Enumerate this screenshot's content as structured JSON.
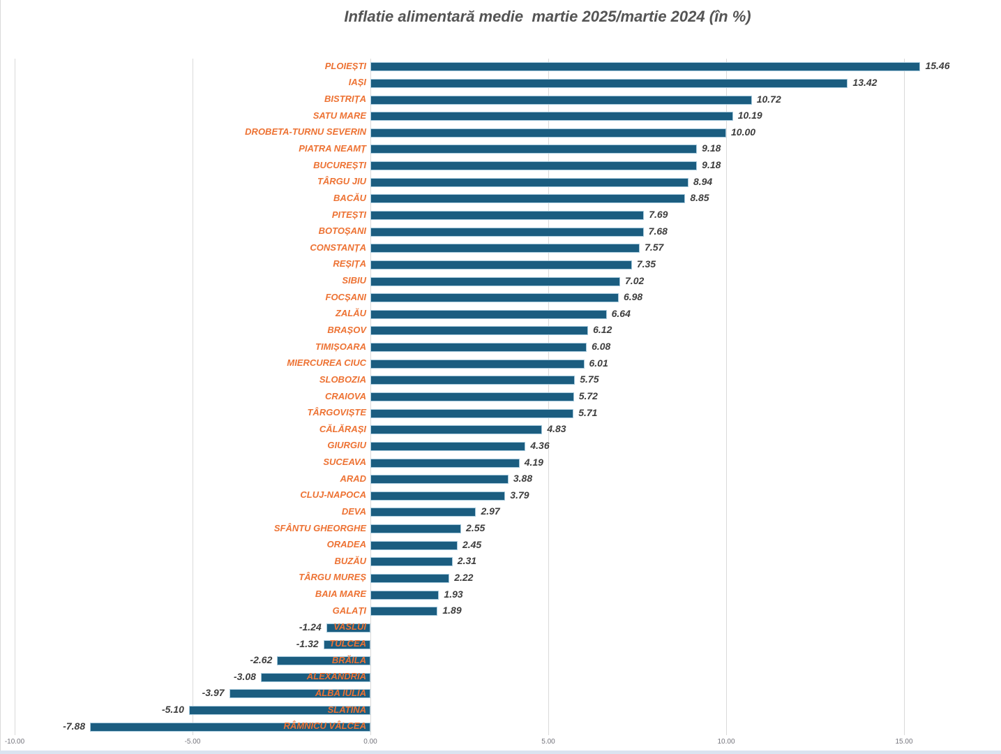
{
  "chart_data": {
    "type": "bar",
    "orientation": "horizontal",
    "title": "Inflatie alimentară medie  martie 2025/martie 2024 (în %)",
    "categories": [
      "PLOIEȘTI",
      "IAȘI",
      "BISTRIȚA",
      "SATU MARE",
      "DROBETA-TURNU SEVERIN",
      "PIATRA NEAMȚ",
      "BUCUREȘTI",
      "TÂRGU JIU",
      "BACĂU",
      "PITEȘTI",
      "BOTOȘANI",
      "CONSTANȚA",
      "REȘIȚA",
      "SIBIU",
      "FOCȘANI",
      "ZALĂU",
      "BRAȘOV",
      "TIMIȘOARA",
      "MIERCUREA CIUC",
      "SLOBOZIA",
      "CRAIOVA",
      "TÂRGOVIȘTE",
      "CĂLĂRAȘI",
      "GIURGIU",
      "SUCEAVA",
      "ARAD",
      "CLUJ-NAPOCA",
      "DEVA",
      "SFÂNTU GHEORGHE",
      "ORADEA",
      "BUZĂU",
      "TÂRGU MUREȘ",
      "BAIA MARE",
      "GALAȚI",
      "VASLUI",
      "TULCEA",
      "BRĂILA",
      "ALEXANDRIA",
      "ALBA IULIA",
      "SLATINA",
      "RÂMNICU VÂLCEA"
    ],
    "values": [
      15.46,
      13.42,
      10.72,
      10.19,
      10.0,
      9.18,
      9.18,
      8.94,
      8.85,
      7.69,
      7.68,
      7.57,
      7.35,
      7.02,
      6.98,
      6.64,
      6.12,
      6.08,
      6.01,
      5.75,
      5.72,
      5.71,
      4.83,
      4.36,
      4.19,
      3.88,
      3.79,
      2.97,
      2.55,
      2.45,
      2.31,
      2.22,
      1.93,
      1.89,
      -1.24,
      -1.32,
      -2.62,
      -3.08,
      -3.97,
      -5.1,
      -7.88
    ],
    "value_label_decimals": 2,
    "xlabel": "",
    "ylabel": "",
    "x_axis": {
      "ticks": [
        -10,
        -5,
        0,
        5,
        10,
        15
      ],
      "tick_labels": [
        "-10.00",
        "-5.00",
        "0.00",
        "5.00",
        "10.00",
        "15.00"
      ],
      "range": [
        -10,
        17.7
      ]
    },
    "grid": true,
    "legend": "none",
    "colors": {
      "bar_fill": "#1b5d80",
      "bar_border": "#a6c9dc",
      "category_label": "#ed7233",
      "value_label": "#3d3d3d",
      "gridline": "#d9d9d9",
      "tick_label": "#73737b",
      "title": "#545454",
      "bottom_strip": "#dae3f0",
      "background": "#ffffff"
    }
  }
}
